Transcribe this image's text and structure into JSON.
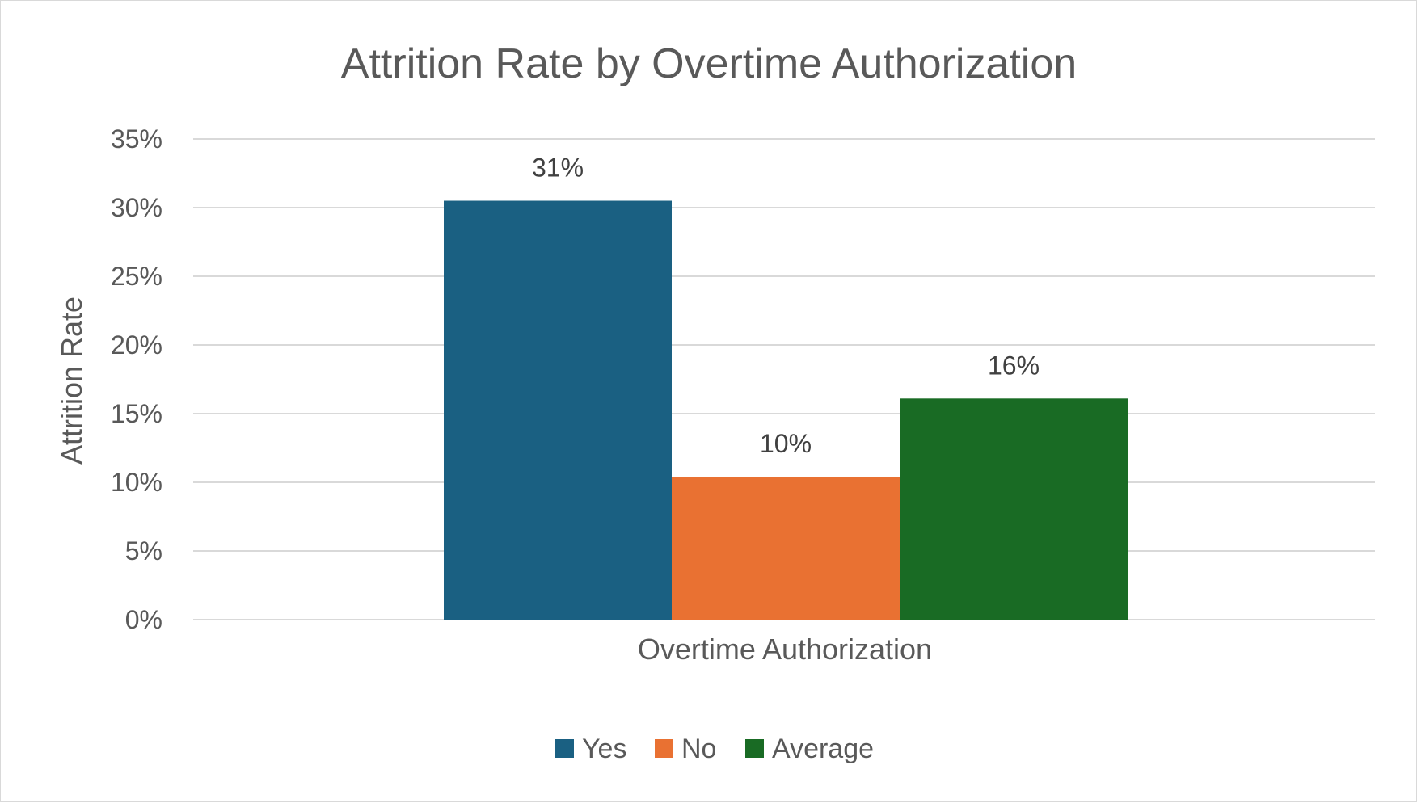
{
  "chart_data": {
    "type": "bar",
    "title": "Attrition Rate by Overtime Authorization",
    "xlabel": "Overtime Authorization",
    "ylabel": "Attrition Rate",
    "categories": [
      "Overtime Authorization"
    ],
    "series": [
      {
        "name": "Yes",
        "values": [
          0.305
        ],
        "label": "31%",
        "color": "#1a6082"
      },
      {
        "name": "No",
        "values": [
          0.104
        ],
        "label": "10%",
        "color": "#e97132"
      },
      {
        "name": "Average",
        "values": [
          0.161
        ],
        "label": "16%",
        "color": "#196b24"
      }
    ],
    "ylim": [
      0,
      0.35
    ],
    "yticks": [
      {
        "value": 0,
        "label": "0%"
      },
      {
        "value": 0.05,
        "label": "5%"
      },
      {
        "value": 0.1,
        "label": "10%"
      },
      {
        "value": 0.15,
        "label": "15%"
      },
      {
        "value": 0.2,
        "label": "20%"
      },
      {
        "value": 0.25,
        "label": "25%"
      },
      {
        "value": 0.3,
        "label": "30%"
      },
      {
        "value": 0.35,
        "label": "35%"
      }
    ],
    "grid": true,
    "legend_position": "bottom"
  }
}
